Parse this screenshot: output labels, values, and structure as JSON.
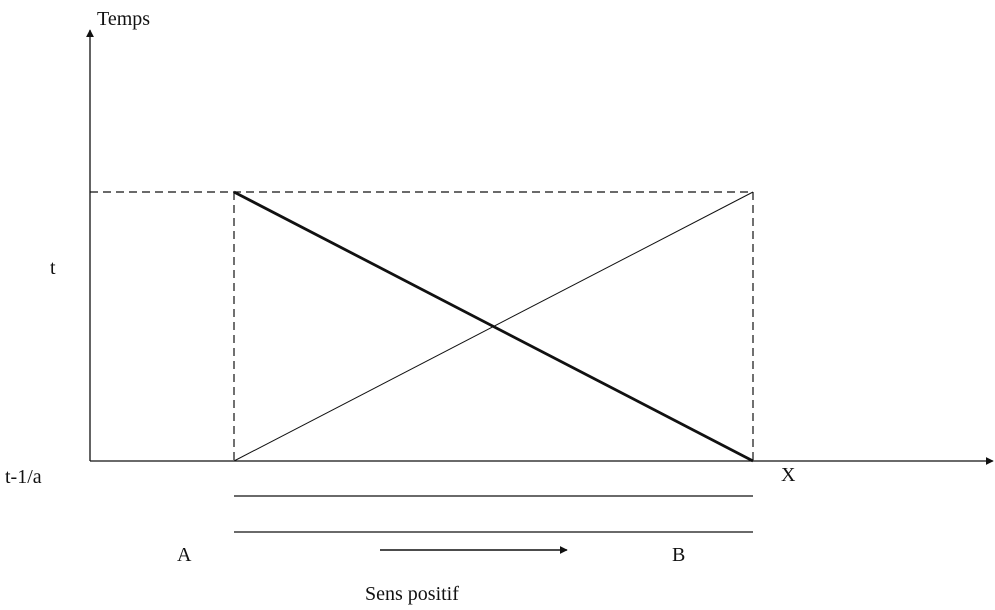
{
  "diagram": {
    "axes": {
      "y_label": "Temps",
      "x_label": "X",
      "y_ticks": [
        "t",
        "t-1/a"
      ]
    },
    "points": {
      "left": "A",
      "right": "B"
    },
    "direction_label": "Sens positif",
    "colors": {
      "ink": "#111111",
      "background": "#ffffff"
    }
  }
}
